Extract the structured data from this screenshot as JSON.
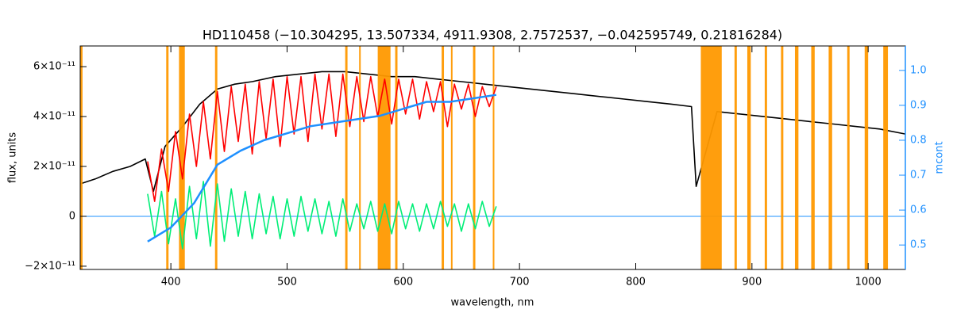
{
  "chart_data": {
    "type": "line",
    "title": "HD110458    (−10.304295, 13.507334, 4911.9308, 2.7572537, −0.042595749, 0.21816284)",
    "x_label": "wavelength, nm",
    "y_label": "flux, units",
    "y2_label": "mcont",
    "xlim": [
      322,
      1032
    ],
    "ylim": [
      -2.13e-11,
      6.83e-11
    ],
    "y2lim": [
      0.43,
      1.07
    ],
    "xticks": [
      400,
      500,
      600,
      700,
      800,
      900,
      1000
    ],
    "yticks": [
      {
        "value": -2e-11,
        "label": "−2×10⁻¹¹"
      },
      0,
      {
        "value": 2e-11,
        "label": "2×10⁻¹¹"
      },
      {
        "value": 4e-11,
        "label": "4×10⁻¹¹"
      },
      {
        "value": 6e-11,
        "label": "6×10⁻¹¹"
      }
    ],
    "y2ticks": [
      0.5,
      0.6,
      0.7,
      0.8,
      0.9,
      {
        "value": 1.0,
        "label": "1.0"
      }
    ],
    "y2_color": "#1e90ff",
    "band_color": "#ff9900",
    "masked_bands": [
      [
        322,
        324
      ],
      [
        396,
        398
      ],
      [
        407,
        412
      ],
      [
        438,
        440
      ],
      [
        550,
        552
      ],
      [
        562,
        563
      ],
      [
        578,
        589
      ],
      [
        593,
        595
      ],
      [
        633,
        635
      ],
      [
        641,
        642
      ],
      [
        660,
        662
      ],
      [
        677,
        678
      ],
      [
        856,
        874
      ],
      [
        885,
        887
      ],
      [
        896,
        899
      ],
      [
        911,
        913
      ],
      [
        925,
        927
      ],
      [
        937,
        940
      ],
      [
        951,
        954
      ],
      [
        966,
        969
      ],
      [
        982,
        984
      ],
      [
        997,
        1000
      ],
      [
        1013,
        1017
      ]
    ],
    "series": [
      {
        "color": "#000000",
        "x": [
          322,
          335,
          350,
          365,
          378,
          385,
          395,
          410,
          425,
          440,
          455,
          470,
          490,
          510,
          530,
          550,
          570,
          590,
          610,
          630,
          650,
          670,
          690,
          710,
          730,
          750,
          770,
          790,
          810,
          830,
          848,
          852,
          870,
          890,
          910,
          930,
          950,
          970,
          990,
          1010,
          1032
        ],
        "values": [
          1.3e-11,
          1.5e-11,
          1.8e-11,
          2e-11,
          2.3e-11,
          1e-11,
          2.8e-11,
          3.6e-11,
          4.5e-11,
          5.1e-11,
          5.3e-11,
          5.4e-11,
          5.6e-11,
          5.7e-11,
          5.8e-11,
          5.8e-11,
          5.7e-11,
          5.6e-11,
          5.6e-11,
          5.5e-11,
          5.4e-11,
          5.3e-11,
          5.2e-11,
          5.1e-11,
          5e-11,
          4.9e-11,
          4.8e-11,
          4.7e-11,
          4.6e-11,
          4.5e-11,
          4.4e-11,
          1.2e-11,
          4.2e-11,
          4.1e-11,
          4e-11,
          3.9e-11,
          3.8e-11,
          3.7e-11,
          3.6e-11,
          3.5e-11,
          3.3e-11
        ]
      },
      {
        "color": "#ff0000",
        "x": [
          380,
          386,
          392,
          398,
          404,
          410,
          416,
          422,
          428,
          434,
          440,
          446,
          452,
          458,
          464,
          470,
          476,
          482,
          488,
          494,
          500,
          506,
          512,
          518,
          524,
          530,
          536,
          542,
          548,
          554,
          560,
          566,
          572,
          578,
          584,
          590,
          596,
          602,
          608,
          614,
          620,
          626,
          632,
          638,
          644,
          650,
          656,
          662,
          668,
          674,
          680
        ],
        "values": [
          2.2e-11,
          6e-12,
          2.7e-11,
          1e-11,
          3.4e-11,
          1.5e-11,
          4.1e-11,
          2e-11,
          4.6e-11,
          2.3e-11,
          5e-11,
          2.6e-11,
          5.2e-11,
          3e-11,
          5.3e-11,
          2.5e-11,
          5.4e-11,
          3.1e-11,
          5.5e-11,
          2.8e-11,
          5.6e-11,
          3.3e-11,
          5.6e-11,
          3e-11,
          5.7e-11,
          3.5e-11,
          5.7e-11,
          3.2e-11,
          5.7e-11,
          3.6e-11,
          5.6e-11,
          3.8e-11,
          5.6e-11,
          4e-11,
          5.5e-11,
          3.7e-11,
          5.5e-11,
          4.1e-11,
          5.5e-11,
          3.9e-11,
          5.4e-11,
          4.2e-11,
          5.4e-11,
          3.6e-11,
          5.3e-11,
          4.3e-11,
          5.3e-11,
          4e-11,
          5.2e-11,
          4.4e-11,
          5.2e-11
        ]
      },
      {
        "color": "#00ee77",
        "x": [
          380,
          386,
          392,
          398,
          404,
          410,
          416,
          422,
          428,
          434,
          440,
          446,
          452,
          458,
          464,
          470,
          476,
          482,
          488,
          494,
          500,
          506,
          512,
          518,
          524,
          530,
          536,
          542,
          548,
          554,
          560,
          566,
          572,
          578,
          584,
          590,
          596,
          602,
          608,
          614,
          620,
          626,
          632,
          638,
          644,
          650,
          656,
          662,
          668,
          674,
          680
        ],
        "values": [
          9e-12,
          -8e-12,
          1e-11,
          -1.1e-11,
          7e-12,
          -1.3e-11,
          1.2e-11,
          -9e-12,
          1.4e-11,
          -1.2e-11,
          1.3e-11,
          -1e-11,
          1.1e-11,
          -8e-12,
          1e-11,
          -9e-12,
          9e-12,
          -7e-12,
          8e-12,
          -9e-12,
          7e-12,
          -8e-12,
          8e-12,
          -6e-12,
          7e-12,
          -7e-12,
          6e-12,
          -8e-12,
          7e-12,
          -6e-12,
          5e-12,
          -5e-12,
          6e-12,
          -6e-12,
          5e-12,
          -7e-12,
          6e-12,
          -5e-12,
          5e-12,
          -6e-12,
          5e-12,
          -5e-12,
          6e-12,
          -4e-12,
          5e-12,
          -6e-12,
          5e-12,
          -5e-12,
          6e-12,
          -4e-12,
          4e-12
        ]
      },
      {
        "color": "#1e90ff",
        "axis": "y2",
        "x": [
          380,
          400,
          420,
          440,
          460,
          480,
          500,
          520,
          540,
          560,
          580,
          600,
          620,
          640,
          660,
          680
        ],
        "values": [
          0.51,
          0.55,
          0.62,
          0.73,
          0.77,
          0.8,
          0.82,
          0.84,
          0.85,
          0.86,
          0.87,
          0.89,
          0.91,
          0.91,
          0.92,
          0.93
        ]
      }
    ]
  }
}
